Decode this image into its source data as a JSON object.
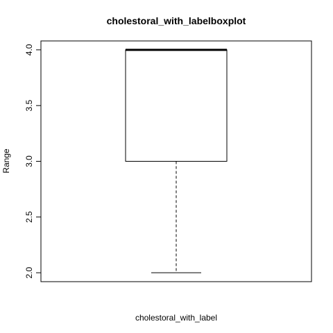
{
  "chart_data": {
    "type": "boxplot",
    "title": "cholestoral_with_labelboxplot",
    "xlabel": "cholestoral_with_label",
    "ylabel": "Range",
    "ylim": [
      1.92,
      4.08
    ],
    "yticks": [
      "2.0",
      "2.5",
      "3.0",
      "3.5",
      "4.0"
    ],
    "grid": false,
    "box": {
      "min": 2.0,
      "q1": 3.0,
      "median": 4.0,
      "q3": 4.0,
      "max": 4.0
    },
    "colors": {
      "stroke": "#000000",
      "fill": "#ffffff"
    }
  }
}
